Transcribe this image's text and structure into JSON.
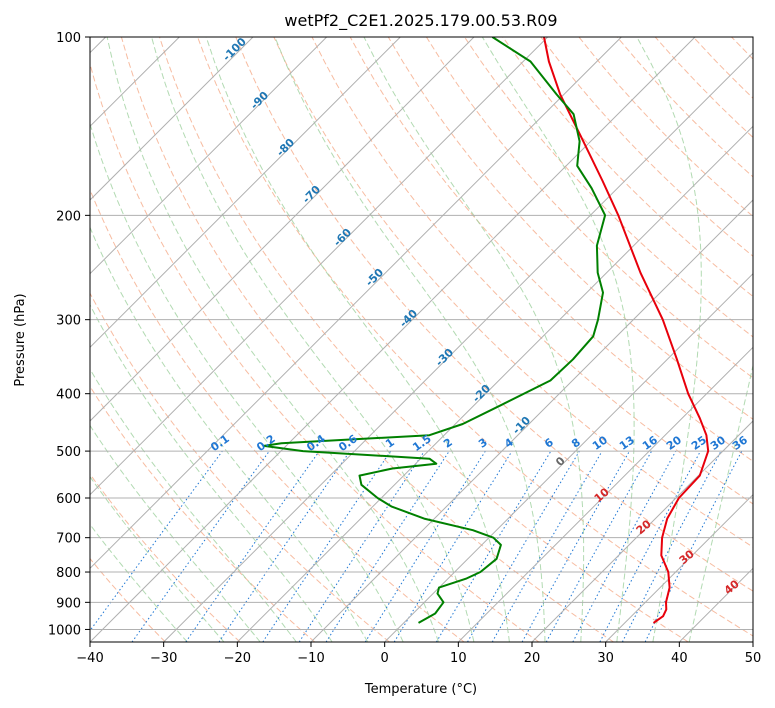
{
  "chart_data": {
    "type": "line",
    "subtype": "skew-t log-p diagram",
    "title": "wetPf2_C2E1.2025.179.00.53.R09",
    "xlabel": "Temperature (°C)",
    "ylabel": "Pressure (hPa)",
    "xlim": [
      -40,
      50
    ],
    "ylim": [
      1050,
      100
    ],
    "y_scale": "log",
    "x_ticks": [
      -40,
      -30,
      -20,
      -10,
      0,
      10,
      20,
      30,
      40,
      50
    ],
    "x_tick_labels": [
      "−40",
      "−30",
      "−20",
      "−10",
      "0",
      "10",
      "20",
      "30",
      "40",
      "50"
    ],
    "y_ticks": [
      1000,
      900,
      800,
      700,
      600,
      500,
      400,
      300,
      200,
      100
    ],
    "y_tick_labels": [
      "1000",
      "900",
      "800",
      "700",
      "600",
      "500",
      "400",
      "300",
      "200",
      "100"
    ],
    "grid": true,
    "colors": {
      "temperature": "#e8000b",
      "dewpoint": "#008000",
      "isotherm": "#b0b0b0",
      "dry_adiabat": "#f4a582",
      "moist_adiabat": "#9fd19f",
      "mixing_ratio": "#1f77d4",
      "dry_adiabat_label": "#d62728",
      "theta_label_blue": "#1f77b4",
      "ice_line": "#e0c9a6"
    },
    "series": [
      {
        "style": "solid",
        "points": [
          {
            "p": 975,
            "t": 33.9
          },
          {
            "p": 950,
            "t": 34.3
          },
          {
            "p": 925,
            "t": 33.8
          },
          {
            "p": 900,
            "t": 32.8
          },
          {
            "p": 850,
            "t": 31.3
          },
          {
            "p": 800,
            "t": 29.0
          },
          {
            "p": 750,
            "t": 25.8
          },
          {
            "p": 700,
            "t": 23.5
          },
          {
            "p": 650,
            "t": 21.6
          },
          {
            "p": 600,
            "t": 20.4
          },
          {
            "p": 550,
            "t": 20.2
          },
          {
            "p": 500,
            "t": 18.0
          },
          {
            "p": 470,
            "t": 15.6
          },
          {
            "p": 440,
            "t": 12.4
          },
          {
            "p": 400,
            "t": 7.5
          },
          {
            "p": 350,
            "t": 1.3
          },
          {
            "p": 300,
            "t": -6.0
          },
          {
            "p": 250,
            "t": -15.4
          },
          {
            "p": 200,
            "t": -26.2
          },
          {
            "p": 175,
            "t": -33.0
          },
          {
            "p": 150,
            "t": -41.0
          },
          {
            "p": 125,
            "t": -50.5
          },
          {
            "p": 110,
            "t": -56.5
          },
          {
            "p": 100,
            "t": -60.5
          }
        ]
      },
      {
        "style": "solid",
        "points": [
          {
            "p": 975,
            "t": 2.0
          },
          {
            "p": 940,
            "t": 3.0
          },
          {
            "p": 900,
            "t": 2.6
          },
          {
            "p": 870,
            "t": 0.6
          },
          {
            "p": 850,
            "t": 0.0
          },
          {
            "p": 820,
            "t": 2.5
          },
          {
            "p": 800,
            "t": 3.5
          },
          {
            "p": 760,
            "t": 3.9
          },
          {
            "p": 720,
            "t": 2.6
          },
          {
            "p": 700,
            "t": 0.6
          },
          {
            "p": 680,
            "t": -3.2
          },
          {
            "p": 650,
            "t": -11.4
          },
          {
            "p": 620,
            "t": -17.5
          },
          {
            "p": 600,
            "t": -20.5
          },
          {
            "p": 570,
            "t": -24.5
          },
          {
            "p": 550,
            "t": -26.0
          },
          {
            "p": 535,
            "t": -22.5
          },
          {
            "p": 525,
            "t": -17.2
          },
          {
            "p": 515,
            "t": -18.8
          },
          {
            "p": 500,
            "t": -37.0
          },
          {
            "p": 490,
            "t": -43.0
          },
          {
            "p": 485,
            "t": -41.0
          },
          {
            "p": 470,
            "t": -22.0
          },
          {
            "p": 450,
            "t": -19.0
          },
          {
            "p": 420,
            "t": -16.5
          },
          {
            "p": 380,
            "t": -13.0
          },
          {
            "p": 350,
            "t": -12.8
          },
          {
            "p": 320,
            "t": -13.2
          },
          {
            "p": 300,
            "t": -14.8
          },
          {
            "p": 270,
            "t": -17.8
          },
          {
            "p": 250,
            "t": -21.2
          },
          {
            "p": 225,
            "t": -25.0
          },
          {
            "p": 200,
            "t": -28.0
          },
          {
            "p": 180,
            "t": -33.5
          },
          {
            "p": 165,
            "t": -38.5
          },
          {
            "p": 150,
            "t": -41.5
          },
          {
            "p": 135,
            "t": -46.0
          },
          {
            "p": 125,
            "t": -51.0
          },
          {
            "p": 110,
            "t": -59.0
          },
          {
            "p": 100,
            "t": -67.5
          }
        ]
      }
    ],
    "mixing_ratio_labels": [
      "0.1",
      "0.2",
      "0.4",
      "0.6",
      "1",
      "1.5",
      "2",
      "3",
      "4",
      "6",
      "8",
      "10",
      "13",
      "16",
      "20",
      "25",
      "30",
      "36"
    ],
    "dry_adiabat_labels": [
      "10",
      "20",
      "30",
      "40"
    ],
    "theta_labels": [
      "-100",
      "-90",
      "-80",
      "-70",
      "-60",
      "-50",
      "-40",
      "-30",
      "-20",
      "-10",
      "0"
    ]
  }
}
